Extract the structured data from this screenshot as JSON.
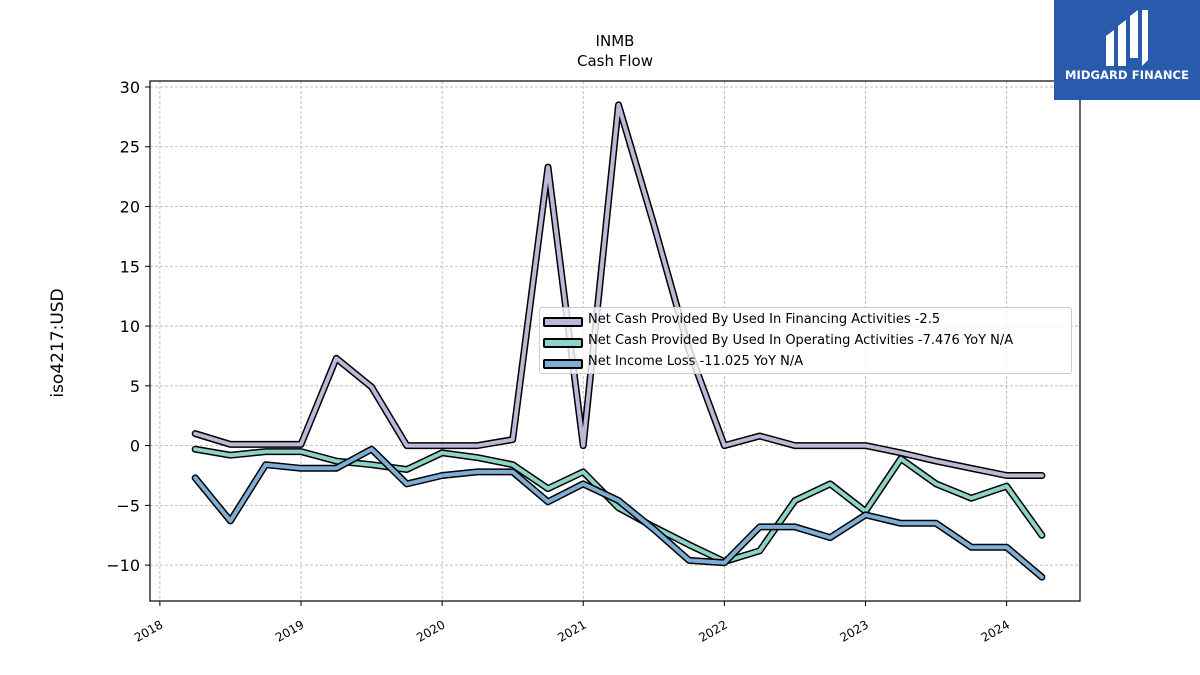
{
  "title": "INMB",
  "subtitle": "Cash Flow",
  "logo": {
    "text": "MIDGARD FINANCE",
    "color": "#2a5aab"
  },
  "chart_data": {
    "type": "line",
    "ylabel": "iso4217:USD",
    "xlabel": "",
    "ylim": [
      -13,
      30.5
    ],
    "xlim": [
      2017.93,
      2024.52
    ],
    "grid": true,
    "legend_position": "center-right",
    "x_ticks": [
      "2018",
      "2019",
      "2020",
      "2021",
      "2022",
      "2023",
      "2024"
    ],
    "y_ticks": [
      30,
      25,
      20,
      15,
      10,
      5,
      0,
      -5,
      -10
    ],
    "x": [
      2018.25,
      2018.5,
      2018.75,
      2019.0,
      2019.25,
      2019.5,
      2019.75,
      2020.0,
      2020.25,
      2020.5,
      2020.75,
      2021.0,
      2021.25,
      2021.5,
      2021.75,
      2022.0,
      2022.25,
      2022.5,
      2022.75,
      2023.0,
      2023.25,
      2023.5,
      2023.75,
      2024.0,
      2024.25
    ],
    "series": [
      {
        "name": "Net Cash Provided By Used In Financing Activities  -2.5",
        "color": "#bcb8d8",
        "values": [
          1.0,
          0.1,
          0.1,
          0.1,
          7.3,
          4.9,
          0.0,
          0.0,
          0.0,
          0.5,
          23.3,
          0.0,
          28.5,
          18.5,
          8.0,
          0.0,
          0.8,
          0.0,
          0.0,
          0.0,
          -0.6,
          -1.3,
          -1.9,
          -2.5,
          -2.5
        ]
      },
      {
        "name": "Net Cash Provided By Used In Operating Activities  -7.476 YoY N/A",
        "color": "#8dd3c7",
        "values": [
          -0.3,
          -0.8,
          -0.5,
          -0.5,
          -1.3,
          -1.6,
          -2.0,
          -0.6,
          -1.0,
          -1.6,
          -3.6,
          -2.2,
          -5.2,
          -6.8,
          -8.3,
          -9.7,
          -8.8,
          -4.6,
          -3.2,
          -5.5,
          -1.1,
          -3.2,
          -4.4,
          -3.4,
          -7.5
        ]
      },
      {
        "name": "Net Income Loss  -11.025 YoY N/A",
        "color": "#7eaed6",
        "values": [
          -2.7,
          -6.3,
          -1.6,
          -1.9,
          -1.9,
          -0.3,
          -3.2,
          -2.5,
          -2.2,
          -2.2,
          -4.7,
          -3.2,
          -4.6,
          -7.0,
          -9.6,
          -9.8,
          -6.8,
          -6.8,
          -7.7,
          -5.8,
          -6.5,
          -6.5,
          -8.5,
          -8.5,
          -11.0
        ]
      }
    ]
  }
}
